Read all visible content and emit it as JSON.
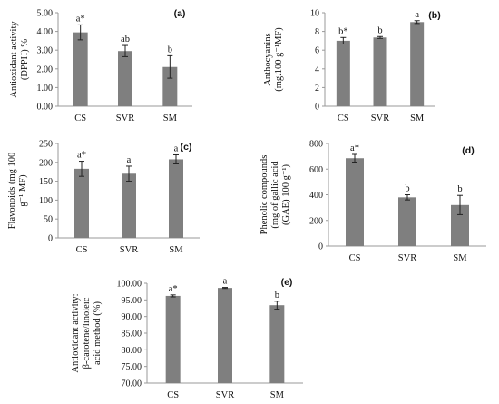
{
  "chart_data": [
    {
      "panel": "(a)",
      "type": "bar",
      "categories": [
        "CS",
        "SVR",
        "SM"
      ],
      "values": [
        3.95,
        2.95,
        2.1
      ],
      "errors": [
        0.4,
        0.3,
        0.6
      ],
      "labels": [
        "a*",
        "ab",
        "b"
      ],
      "ylabel_lines": [
        "Antioxidant activity",
        "(DPPH) %"
      ],
      "ylim": [
        0,
        5
      ],
      "ticks": [
        "0.00",
        "1.00",
        "2.00",
        "3.00",
        "4.00",
        "5.00"
      ],
      "bar_color": "#7f7f7f"
    },
    {
      "panel": "(b)",
      "type": "bar",
      "categories": [
        "CS",
        "SVR",
        "SM"
      ],
      "values": [
        7.0,
        7.35,
        9.0
      ],
      "errors": [
        0.35,
        0.1,
        0.15
      ],
      "labels": [
        "b*",
        "b",
        "a"
      ],
      "ylabel_lines": [
        "Anthocyanins",
        "(mg.100 g⁻¹MF)"
      ],
      "ylim": [
        0,
        10
      ],
      "ticks": [
        "0",
        "2",
        "4",
        "6",
        "8",
        "10"
      ],
      "bar_color": "#7f7f7f"
    },
    {
      "panel": "(c)",
      "type": "bar",
      "categories": [
        "CS",
        "SVR",
        "SM"
      ],
      "values": [
        183,
        170,
        208
      ],
      "errors": [
        20,
        20,
        12
      ],
      "labels": [
        "a*",
        "a",
        "a"
      ],
      "ylabel_lines": [
        "Flavonoids (mg 100",
        "g⁻¹ MF)"
      ],
      "ylim": [
        0,
        250
      ],
      "ticks": [
        "0",
        "50",
        "100",
        "150",
        "200",
        "250"
      ],
      "bar_color": "#7f7f7f"
    },
    {
      "panel": "(d)",
      "type": "bar",
      "categories": [
        "CS",
        "SVR",
        "SM"
      ],
      "values": [
        685,
        380,
        320
      ],
      "errors": [
        30,
        20,
        75
      ],
      "labels": [
        "a*",
        "b",
        "b"
      ],
      "ylabel_lines": [
        "Phenolic compounds",
        "(mg of gallic acid",
        "(GAE) 100 g⁻¹)"
      ],
      "ylim": [
        0,
        800
      ],
      "ticks": [
        "0",
        "200",
        "400",
        "600",
        "800"
      ],
      "bar_color": "#7f7f7f"
    },
    {
      "panel": "(e)",
      "type": "bar",
      "categories": [
        "CS",
        "SVR",
        "SM"
      ],
      "values": [
        96.2,
        98.6,
        93.4
      ],
      "errors": [
        0.3,
        0.15,
        1.2
      ],
      "labels": [
        "a*",
        "a",
        "b"
      ],
      "ylabel_lines": [
        "Antioxidant activity:",
        "β-carotene/linoleic",
        "acid method (%)"
      ],
      "ylim": [
        70,
        100
      ],
      "ticks": [
        "70.00",
        "75.00",
        "80.00",
        "85.00",
        "90.00",
        "95.00",
        "100.00"
      ],
      "bar_color": "#7f7f7f"
    }
  ]
}
